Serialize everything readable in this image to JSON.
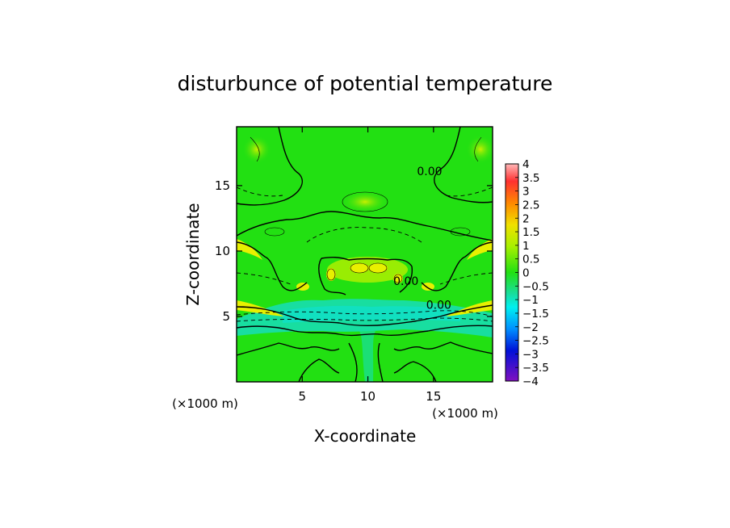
{
  "chart_data": {
    "type": "heatmap",
    "title": "disturbunce of potential temperature",
    "xlabel": "X-coordinate",
    "ylabel": "Z-coordinate",
    "x_unit_label": "(×1000 m)",
    "y_unit_label": "(×1000 m)",
    "xlim": [
      0,
      19.5
    ],
    "ylim": [
      0,
      19.5
    ],
    "x_ticks": [
      5,
      10,
      15
    ],
    "y_ticks": [
      5,
      10,
      15
    ],
    "x_tick_labels": [
      "5",
      "10",
      "15"
    ],
    "y_tick_labels": [
      "5",
      "10",
      "15"
    ],
    "colorbar": {
      "min": -4,
      "max": 4,
      "step": 0.5,
      "tick_labels": [
        "4",
        "3.5",
        "3",
        "2.5",
        "2",
        "1.5",
        "1",
        "0.5",
        "0",
        "−0.5",
        "−1",
        "−1.5",
        "−2",
        "−2.5",
        "−3",
        "−3.5",
        "−4"
      ]
    },
    "contour_labels": [
      {
        "text": "0.00",
        "x": 14.7,
        "z": 16.1
      },
      {
        "text": "0.00",
        "x": 12.9,
        "z": 7.7
      },
      {
        "text": "0.00",
        "x": 15.4,
        "z": 5.9
      }
    ],
    "colors": {
      "background_green": "#22e012",
      "cold_cyan": "#18dea0",
      "warm_yellow": "#e8f000",
      "frame": "#000000"
    }
  }
}
